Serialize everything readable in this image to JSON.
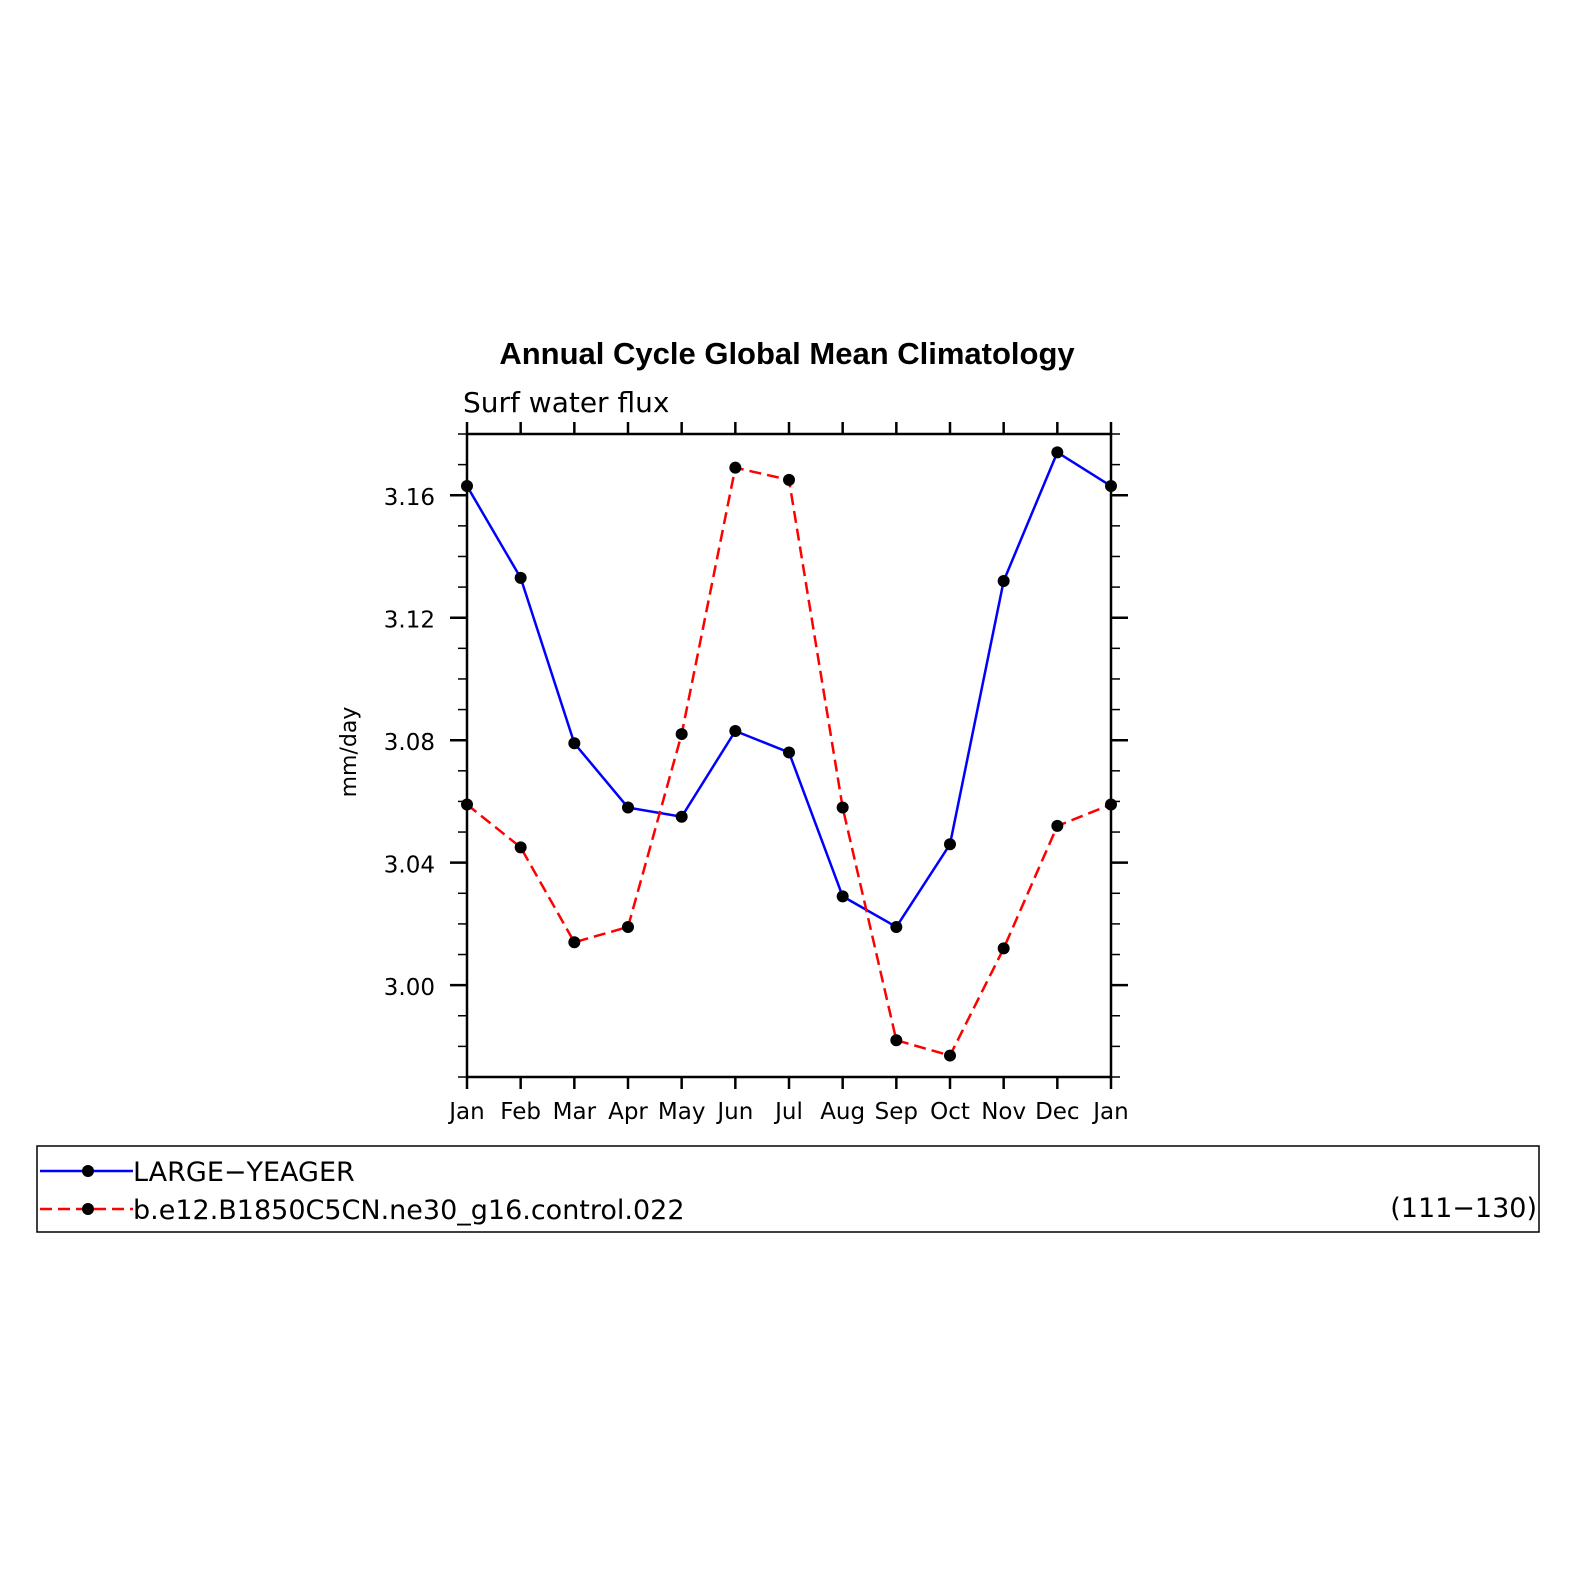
{
  "chart_data": {
    "type": "line",
    "title": "Annual Cycle Global Mean Climatology",
    "subtitle": "Surf water flux",
    "xlabel": "",
    "ylabel": "mm/day",
    "categories": [
      "Jan",
      "Feb",
      "Mar",
      "Apr",
      "May",
      "Jun",
      "Jul",
      "Aug",
      "Sep",
      "Oct",
      "Nov",
      "Dec",
      "Jan"
    ],
    "ylim": [
      2.97,
      3.18
    ],
    "yticks": [
      "3.00",
      "3.04",
      "3.08",
      "3.12",
      "3.16"
    ],
    "grid": false,
    "series": [
      {
        "name": "LARGE−YEAGER",
        "color": "#0000ff",
        "dash": "solid",
        "marker": "filled-circle",
        "values": [
          3.163,
          3.133,
          3.079,
          3.058,
          3.055,
          3.083,
          3.076,
          3.029,
          3.019,
          3.046,
          3.132,
          3.174,
          3.163
        ]
      },
      {
        "name": "b.e12.B1850C5CN.ne30_g16.control.022",
        "color": "#ff0000",
        "dash": "dashed",
        "marker": "filled-circle",
        "values": [
          3.059,
          3.045,
          3.014,
          3.019,
          3.082,
          3.169,
          3.165,
          3.058,
          2.982,
          2.977,
          3.012,
          3.052,
          3.059
        ]
      }
    ],
    "legend": {
      "placement": "bottom",
      "note": "(111−130)"
    }
  }
}
